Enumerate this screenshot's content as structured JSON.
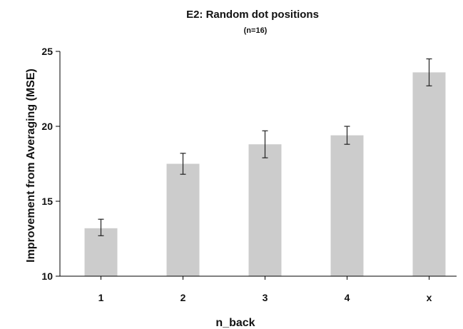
{
  "chart_data": {
    "type": "bar",
    "title": "E2:  Random dot positions",
    "subtitle": "(n=16)",
    "xlabel": "n_back",
    "ylabel": "Improvement from Averaging (MSE)",
    "categories": [
      "1",
      "2",
      "3",
      "4",
      "x"
    ],
    "values": [
      13.2,
      17.5,
      18.8,
      19.4,
      23.6
    ],
    "error_low": [
      12.7,
      16.8,
      17.9,
      18.8,
      22.7
    ],
    "error_high": [
      13.8,
      18.2,
      19.7,
      20.0,
      24.5
    ],
    "ylim": [
      10,
      25
    ],
    "yticks": [
      10,
      15,
      20,
      25
    ],
    "bar_color": "#cccccc",
    "grid": false,
    "legend": "none"
  }
}
